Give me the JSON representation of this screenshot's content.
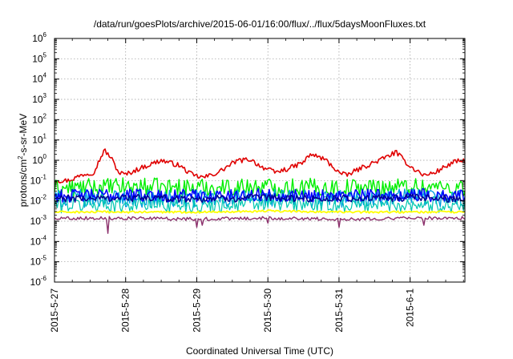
{
  "chart_data": {
    "type": "line",
    "title": "/data/run/goesPlots/archive/2015-06-01/16:00/flux/../flux/5daysMoonFluxes.txt",
    "xlabel": "Coordinated Universal Time (UTC)",
    "ylabel": {
      "base": "protons/cm",
      "sup": "2",
      "rest": "-s-sr-MeV"
    },
    "yscale": "log",
    "ylim_exp": [
      -6,
      6
    ],
    "y_ticks": [
      {
        "base": "10",
        "exp": "6"
      },
      {
        "base": "10",
        "exp": "5"
      },
      {
        "base": "10",
        "exp": "4"
      },
      {
        "base": "10",
        "exp": "3"
      },
      {
        "base": "10",
        "exp": "2"
      },
      {
        "base": "10",
        "exp": "1"
      },
      {
        "base": "10",
        "exp": "0"
      },
      {
        "base": "10",
        "exp": "-1"
      },
      {
        "base": "10",
        "exp": "-2"
      },
      {
        "base": "10",
        "exp": "-3"
      },
      {
        "base": "10",
        "exp": "-4"
      },
      {
        "base": "10",
        "exp": "-5"
      },
      {
        "base": "10",
        "exp": "-6"
      }
    ],
    "xlim_days": [
      0,
      5.77
    ],
    "x_ticks": [
      {
        "day": 0,
        "label": "2015-5-27"
      },
      {
        "day": 1,
        "label": "2015-5-28"
      },
      {
        "day": 2,
        "label": "2015-5-29"
      },
      {
        "day": 3,
        "label": "2015-5-30"
      },
      {
        "day": 4,
        "label": "2015-5-31"
      },
      {
        "day": 5,
        "label": "2015-6-1"
      }
    ],
    "grid": true,
    "series": [
      {
        "color": "#e00000",
        "width": 1.6,
        "noise": 0.12,
        "anchors": [
          [
            0,
            -1.0
          ],
          [
            0.2,
            -1.0
          ],
          [
            0.4,
            -0.7
          ],
          [
            0.55,
            -0.6
          ],
          [
            0.7,
            0.5
          ],
          [
            0.8,
            0.1
          ],
          [
            0.9,
            -0.6
          ],
          [
            1.0,
            -0.7
          ],
          [
            1.2,
            -0.4
          ],
          [
            1.5,
            0.0
          ],
          [
            1.75,
            -0.25
          ],
          [
            1.95,
            -0.75
          ],
          [
            2.1,
            -0.85
          ],
          [
            2.3,
            -0.6
          ],
          [
            2.55,
            -0.05
          ],
          [
            2.75,
            0.05
          ],
          [
            2.9,
            -0.3
          ],
          [
            3.1,
            -0.6
          ],
          [
            3.3,
            -0.4
          ],
          [
            3.5,
            -0.1
          ],
          [
            3.6,
            0.3
          ],
          [
            3.8,
            0.05
          ],
          [
            4.0,
            -0.6
          ],
          [
            4.1,
            -0.75
          ],
          [
            4.3,
            -0.4
          ],
          [
            4.6,
            0.05
          ],
          [
            4.8,
            0.4
          ],
          [
            5.0,
            -0.3
          ],
          [
            5.2,
            -0.75
          ],
          [
            5.35,
            -0.6
          ],
          [
            5.5,
            -0.3
          ],
          [
            5.65,
            -0.05
          ],
          [
            5.77,
            -0.05
          ]
        ]
      },
      {
        "color": "#00ee00",
        "width": 1.4,
        "noise": 0.45,
        "anchors": [
          [
            0,
            -1.4
          ],
          [
            1,
            -1.3
          ],
          [
            2,
            -1.35
          ],
          [
            3,
            -1.3
          ],
          [
            4,
            -1.35
          ],
          [
            5,
            -1.3
          ],
          [
            5.77,
            -1.35
          ]
        ]
      },
      {
        "color": "#00a0e0",
        "width": 1.4,
        "noise": 0.45,
        "anchors": [
          [
            0,
            -1.9
          ],
          [
            1,
            -1.85
          ],
          [
            2,
            -1.9
          ],
          [
            3,
            -1.85
          ],
          [
            4,
            -1.9
          ],
          [
            5,
            -1.85
          ],
          [
            5.77,
            -1.9
          ]
        ]
      },
      {
        "color": "#00c8b0",
        "width": 1.2,
        "noise": 0.4,
        "anchors": [
          [
            0,
            -2.2
          ],
          [
            1,
            -2.15
          ],
          [
            2,
            -2.2
          ],
          [
            3,
            -2.15
          ],
          [
            4,
            -2.2
          ],
          [
            5,
            -2.15
          ],
          [
            5.77,
            -2.2
          ]
        ]
      },
      {
        "color": "#0000ff",
        "width": 1.5,
        "noise": 0.32,
        "anchors": [
          [
            0,
            -1.75
          ],
          [
            1,
            -1.7
          ],
          [
            2,
            -1.75
          ],
          [
            3,
            -1.7
          ],
          [
            4,
            -1.75
          ],
          [
            5,
            -1.7
          ],
          [
            5.77,
            -1.75
          ]
        ]
      },
      {
        "color": "#000090",
        "width": 1.5,
        "noise": 0.18,
        "anchors": [
          [
            0,
            -1.9
          ],
          [
            1,
            -1.85
          ],
          [
            2,
            -1.9
          ],
          [
            3,
            -1.85
          ],
          [
            4,
            -1.9
          ],
          [
            5,
            -1.85
          ],
          [
            5.77,
            -1.9
          ]
        ]
      },
      {
        "color": "#ffff00",
        "width": 1.8,
        "noise": 0.05,
        "anchors": [
          [
            0,
            -2.55
          ],
          [
            1,
            -2.55
          ],
          [
            2,
            -2.55
          ],
          [
            3,
            -2.5
          ],
          [
            4,
            -2.55
          ],
          [
            5,
            -2.55
          ],
          [
            5.77,
            -2.55
          ]
        ]
      },
      {
        "color": "#8b2f6b",
        "width": 1.4,
        "noise": 0.08,
        "dips": [
          [
            0.75,
            -3.6
          ],
          [
            2.0,
            -3.3
          ],
          [
            2.08,
            -3.2
          ],
          [
            3.0,
            -3.1
          ],
          [
            4.0,
            -3.3
          ],
          [
            5.2,
            -3.2
          ]
        ],
        "anchors": [
          [
            0,
            -2.85
          ],
          [
            1,
            -2.85
          ],
          [
            2,
            -2.9
          ],
          [
            3,
            -2.85
          ],
          [
            4,
            -2.9
          ],
          [
            5,
            -2.85
          ],
          [
            5.77,
            -2.85
          ]
        ]
      }
    ]
  }
}
